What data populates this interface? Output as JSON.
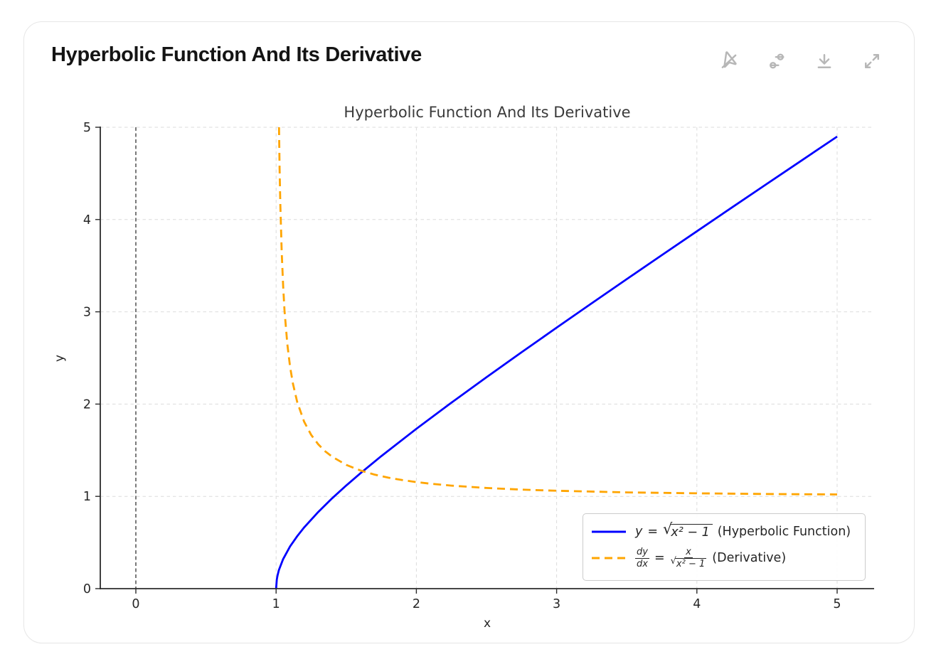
{
  "card": {
    "title": "Hyperbolic Function And Its Derivative"
  },
  "toolbar": {
    "icons": [
      "interactivity-off-icon",
      "filter-sliders-icon",
      "download-icon",
      "expand-icon"
    ]
  },
  "chart_data": {
    "type": "line",
    "title": "Hyperbolic Function And Its Derivative",
    "xlabel": "x",
    "ylabel": "y",
    "xlim": [
      -0.25,
      5.27
    ],
    "ylim": [
      0,
      5
    ],
    "x_ticks": [
      0,
      1,
      2,
      3,
      4,
      5
    ],
    "y_ticks": [
      0,
      1,
      2,
      3,
      4,
      5
    ],
    "grid": true,
    "legend_position": "lower right",
    "reference_lines": [
      {
        "axis": "x",
        "value": 0,
        "style": "dashed",
        "color": "#333333"
      }
    ],
    "series": [
      {
        "name": "y = √(x² − 1) (Hyperbolic Function)",
        "color": "#0000ff",
        "style": "solid",
        "x": [
          1,
          1.005,
          1.01,
          1.02,
          1.05,
          1.1,
          1.15,
          1.2,
          1.3,
          1.4,
          1.5,
          1.6,
          1.75,
          2,
          2.25,
          2.5,
          2.75,
          3,
          3.25,
          3.5,
          3.75,
          4,
          4.25,
          4.5,
          4.75,
          5
        ],
        "y": [
          0,
          0.1001,
          0.1418,
          0.201,
          0.3202,
          0.4583,
          0.5679,
          0.6633,
          0.8307,
          0.9798,
          1.118,
          1.249,
          1.4361,
          1.7321,
          2.0156,
          2.2913,
          2.5617,
          2.8284,
          3.0923,
          3.3541,
          3.6142,
          3.873,
          4.1307,
          4.3875,
          4.6436,
          4.899
        ]
      },
      {
        "name": "dy/dx = x / √(x² − 1) (Derivative)",
        "color": "#ffa500",
        "style": "dashed",
        "x": [
          1.0206,
          1.025,
          1.03,
          1.04,
          1.05,
          1.06,
          1.08,
          1.1,
          1.12,
          1.15,
          1.2,
          1.25,
          1.3,
          1.35,
          1.4,
          1.5,
          1.6,
          1.7,
          1.8,
          1.9,
          2,
          2.1,
          2.25,
          2.5,
          2.75,
          3,
          3.5,
          4,
          4.5,
          5
        ],
        "y": [
          5.0,
          4.5556,
          4.174,
          3.6407,
          3.2796,
          3.0151,
          2.6476,
          2.4004,
          2.2206,
          2.025,
          1.8091,
          1.6667,
          1.565,
          1.4886,
          1.4289,
          1.3416,
          1.281,
          1.2366,
          1.2027,
          1.1761,
          1.1547,
          1.1372,
          1.1163,
          1.0911,
          1.0735,
          1.0607,
          1.0435,
          1.0328,
          1.0256,
          1.0206
        ]
      }
    ]
  },
  "legend": {
    "items": [
      {
        "series_color": "#0000ff",
        "line_style": "solid",
        "lhs": "y",
        "eq": "=",
        "rad": "√",
        "sqrt_arg": "x² − 1",
        "note": "(Hyperbolic Function)"
      },
      {
        "series_color": "#ffa500",
        "line_style": "dashed",
        "frac_num": "dy",
        "frac_den": "dx",
        "eq": "=",
        "rhs_num": "x",
        "rad": "√",
        "rhs_sqrt_arg": "x² − 1",
        "note": "(Derivative)"
      }
    ]
  }
}
